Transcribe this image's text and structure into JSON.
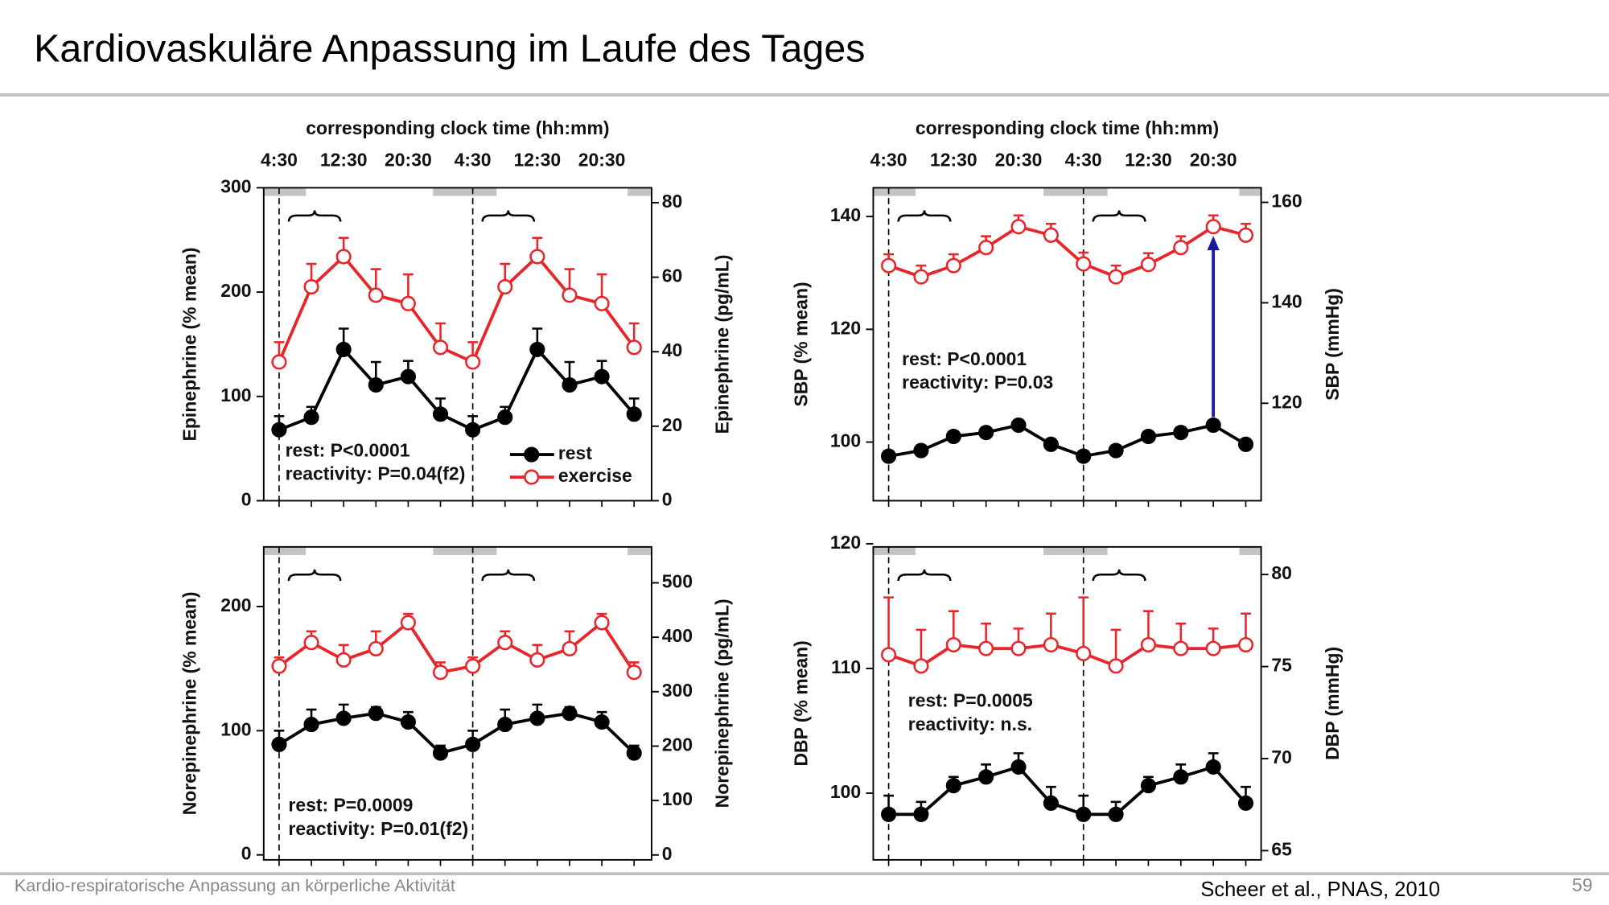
{
  "slide_title": "Kardiovaskuläre Anpassung im Laufe des Tages",
  "footer": "Kardio-respiratorische Anpassung an körperliche Aktivität",
  "citation": "Scheer et al., PNAS, 2010",
  "page_number": "59",
  "chart_data": [
    {
      "type": "line",
      "x_axis_title": "corresponding clock time (hh:mm)",
      "categories": [
        "4:30",
        null,
        "12:30",
        null,
        "20:30",
        null,
        "4:30",
        null,
        "12:30",
        null,
        "20:30",
        null
      ],
      "ylabel": "Epinephrine (% mean)",
      "y2label": "Epinephrine (pg/mL)",
      "ylim": [
        0,
        300
      ],
      "yticks": [
        0,
        100,
        200,
        300
      ],
      "y2lim": [
        0,
        84
      ],
      "y2ticks": [
        0,
        20,
        40,
        60,
        80
      ],
      "legend": "lower right",
      "annotations": [
        "rest: P<0.0001",
        "reactivity: P=0.04(f2)"
      ],
      "series": [
        {
          "name": "rest",
          "color": "#000000",
          "marker_fill": "#000000",
          "values": [
            68,
            80,
            145,
            111,
            119,
            83,
            68,
            80,
            145,
            111,
            119,
            83
          ],
          "errors": [
            13,
            10,
            20,
            22,
            15,
            15,
            13,
            10,
            20,
            22,
            15,
            15
          ]
        },
        {
          "name": "exercise",
          "color": "#e8262a",
          "marker_fill": "#ffffff",
          "values": [
            133,
            205,
            234,
            197,
            189,
            147,
            133,
            205,
            234,
            197,
            189,
            147
          ],
          "errors": [
            19,
            22,
            18,
            25,
            28,
            23,
            19,
            22,
            18,
            25,
            28,
            23
          ]
        }
      ]
    },
    {
      "type": "line",
      "categories": [
        null,
        null,
        null,
        null,
        null,
        null,
        null,
        null,
        null,
        null,
        null,
        null
      ],
      "ylabel": "Norepinephrine (% mean)",
      "y2label": "Norepinephrine (pg/mL)",
      "ylim": [
        -4,
        248
      ],
      "yticks": [
        0,
        100,
        200
      ],
      "y2lim": [
        -9,
        566
      ],
      "y2ticks": [
        0,
        100,
        200,
        300,
        400,
        500
      ],
      "annotations": [
        "rest: P=0.0009",
        "reactivity: P=0.01(f2)"
      ],
      "series": [
        {
          "color": "#000000",
          "marker_fill": "#000000",
          "values": [
            89,
            105,
            110,
            114,
            107,
            82,
            89,
            105,
            110,
            114,
            107,
            82
          ],
          "errors": [
            11,
            12,
            11,
            5,
            8,
            6,
            11,
            12,
            11,
            5,
            8,
            6
          ]
        },
        {
          "color": "#e8262a",
          "marker_fill": "#ffffff",
          "values": [
            152,
            171,
            157,
            166,
            187,
            147,
            152,
            171,
            157,
            166,
            187,
            147
          ],
          "errors": [
            7,
            9,
            12,
            14,
            7,
            8,
            7,
            9,
            12,
            14,
            7,
            8
          ]
        }
      ]
    },
    {
      "type": "line",
      "x_axis_title": "corresponding clock time (hh:mm)",
      "categories": [
        "4:30",
        null,
        "12:30",
        null,
        "20:30",
        null,
        "4:30",
        null,
        "12:30",
        null,
        "20:30",
        null
      ],
      "ylabel": "SBP (% mean)",
      "y2label": "SBP (mmHg)",
      "ylim": [
        89.6,
        145.1
      ],
      "yticks": [
        100,
        120,
        140
      ],
      "y2lim": [
        100.6,
        162.9
      ],
      "y2ticks": [
        120,
        140,
        160
      ],
      "annotations": [
        "rest: P<0.0001",
        "reactivity: P=0.03"
      ],
      "series": [
        {
          "color": "#000000",
          "marker_fill": "#000000",
          "values": [
            97.5,
            98.5,
            101,
            101.7,
            103,
            99.6,
            97.5,
            98.5,
            101,
            101.7,
            103,
            99.6
          ],
          "errors": [
            0.9,
            0.9,
            0.9,
            0.9,
            0.9,
            0.9,
            0.9,
            0.9,
            0.9,
            0.9,
            0.9,
            0.9
          ]
        },
        {
          "color": "#e8262a",
          "marker_fill": "#ffffff",
          "values": [
            131.3,
            129.3,
            131.3,
            134.5,
            138.2,
            136.7,
            131.6,
            129.3,
            131.5,
            134.5,
            138.2,
            136.7
          ],
          "errors": [
            2,
            2,
            2,
            2,
            2,
            2,
            2,
            2,
            2,
            2,
            2,
            2
          ]
        }
      ]
    },
    {
      "type": "line",
      "categories": [
        null,
        null,
        null,
        null,
        null,
        null,
        null,
        null,
        null,
        null,
        null,
        null
      ],
      "ylabel": "DBP (% mean)",
      "y2label": "DBP (mmHg)",
      "ylim": [
        94.65,
        119.75
      ],
      "yticks": [
        100,
        110,
        120
      ],
      "y2lim": [
        64.5,
        81.5
      ],
      "y2ticks": [
        65,
        70,
        75,
        80
      ],
      "annotations": [
        "rest: P=0.0005",
        "reactivity: n.s."
      ],
      "series": [
        {
          "color": "#000000",
          "marker_fill": "#000000",
          "values": [
            98.3,
            98.3,
            100.6,
            101.3,
            102.1,
            99.2,
            98.3,
            98.3,
            100.6,
            101.3,
            102.1,
            99.2
          ],
          "errors": [
            1.5,
            1,
            0.7,
            1,
            1.1,
            1.3,
            1.5,
            1,
            0.7,
            1,
            1.1,
            1.3
          ]
        },
        {
          "color": "#e8262a",
          "marker_fill": "#ffffff",
          "values": [
            111.1,
            110.2,
            111.9,
            111.6,
            111.6,
            111.9,
            111.2,
            110.2,
            111.9,
            111.6,
            111.6,
            111.9
          ],
          "errors": [
            4.6,
            2.9,
            2.7,
            2,
            1.6,
            2.5,
            4.5,
            2.9,
            2.7,
            2,
            1.6,
            2.5
          ]
        }
      ]
    }
  ]
}
